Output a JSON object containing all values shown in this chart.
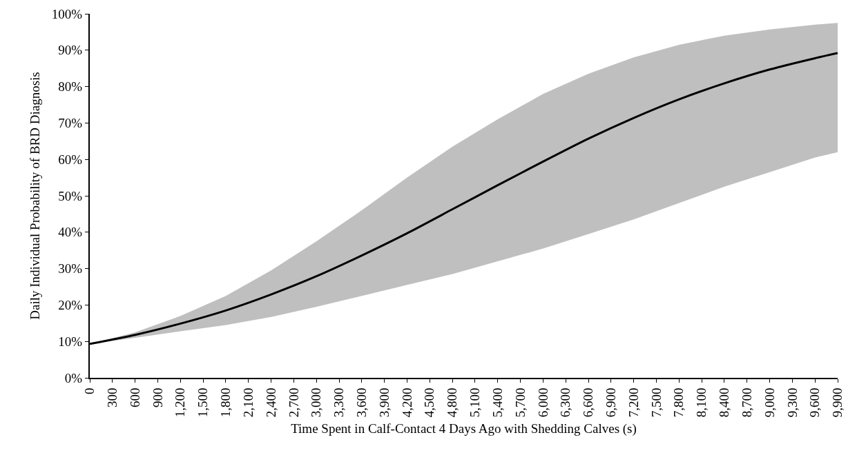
{
  "chart_data": {
    "type": "line",
    "xlabel": "Time Spent in Calf-Contact 4 Days Ago with Shedding Calves (s)",
    "ylabel": "Daily Individual Probability of BRD Diagnosis",
    "x": [
      0,
      600,
      1200,
      1800,
      2400,
      3000,
      3600,
      4200,
      4800,
      5400,
      6000,
      6600,
      7200,
      7800,
      8400,
      9000,
      9600,
      9900
    ],
    "series": [
      {
        "color": "#000000",
        "values": [
          9.3,
          11.8,
          14.9,
          18.5,
          22.9,
          27.9,
          33.6,
          39.7,
          46.3,
          52.9,
          59.4,
          65.7,
          71.4,
          76.5,
          80.9,
          84.7,
          87.8,
          89.2
        ],
        "lower": [
          9.3,
          11,
          12.8,
          14.5,
          16.7,
          19.5,
          22.5,
          25.5,
          28.5,
          32,
          35.5,
          39.5,
          43.5,
          48,
          52.5,
          56.5,
          60.5,
          62
        ],
        "upper": [
          9.3,
          12.5,
          17,
          22.5,
          29.5,
          37.5,
          46,
          55,
          63.5,
          71,
          78,
          83.5,
          88,
          91.5,
          94,
          95.7,
          97,
          97.5
        ]
      }
    ],
    "xlim": [
      0,
      9900
    ],
    "xticks": [
      0,
      300,
      600,
      900,
      {
        "value": 1200,
        "label": "1,200"
      },
      {
        "value": 1500,
        "label": "1,500"
      },
      {
        "value": 1800,
        "label": "1,800"
      },
      {
        "value": 2100,
        "label": "2,100"
      },
      {
        "value": 2400,
        "label": "2,400"
      },
      {
        "value": 2700,
        "label": "2,700"
      },
      {
        "value": 3000,
        "label": "3,000"
      },
      {
        "value": 3300,
        "label": "3,300"
      },
      {
        "value": 3600,
        "label": "3,600"
      },
      {
        "value": 3900,
        "label": "3,900"
      },
      {
        "value": 4200,
        "label": "4,200"
      },
      {
        "value": 4500,
        "label": "4,500"
      },
      {
        "value": 4800,
        "label": "4,800"
      },
      {
        "value": 5100,
        "label": "5,100"
      },
      {
        "value": 5400,
        "label": "5,400"
      },
      {
        "value": 5700,
        "label": "5,700"
      },
      {
        "value": 6000,
        "label": "6,000"
      },
      {
        "value": 6300,
        "label": "6,300"
      },
      {
        "value": 6600,
        "label": "6,600"
      },
      {
        "value": 6900,
        "label": "6,900"
      },
      {
        "value": 7200,
        "label": "7,200"
      },
      {
        "value": 7500,
        "label": "7,500"
      },
      {
        "value": 7800,
        "label": "7,800"
      },
      {
        "value": 8100,
        "label": "8,100"
      },
      {
        "value": 8400,
        "label": "8,400"
      },
      {
        "value": 8700,
        "label": "8,700"
      },
      {
        "value": 9000,
        "label": "9,000"
      },
      {
        "value": 9300,
        "label": "9,300"
      },
      {
        "value": 9600,
        "label": "9,600"
      },
      {
        "value": 9900,
        "label": "9,900"
      }
    ],
    "ylim": [
      0,
      100
    ],
    "yticks": [
      {
        "value": 0,
        "label": "0%"
      },
      {
        "value": 10,
        "label": "10%"
      },
      {
        "value": 20,
        "label": "20%"
      },
      {
        "value": 30,
        "label": "30%"
      },
      {
        "value": 40,
        "label": "40%"
      },
      {
        "value": 50,
        "label": "50%"
      },
      {
        "value": 60,
        "label": "60%"
      },
      {
        "value": 70,
        "label": "70%"
      },
      {
        "value": 80,
        "label": "80%"
      },
      {
        "value": 90,
        "label": "90%"
      },
      {
        "value": 100,
        "label": "100%"
      }
    ],
    "grid": false,
    "marker": "none",
    "line_style": "solid"
  }
}
